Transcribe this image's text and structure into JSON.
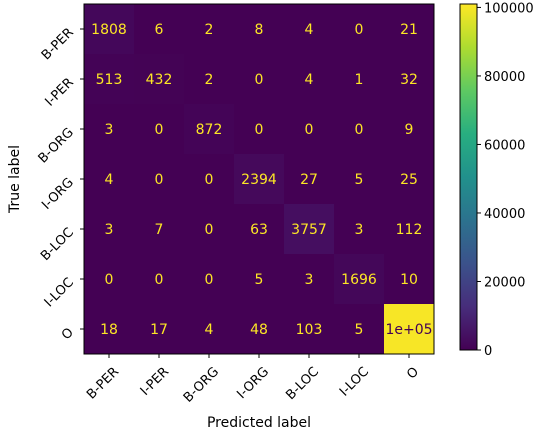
{
  "chart_data": {
    "type": "heatmap",
    "title": "",
    "xlabel": "Predicted label",
    "ylabel": "True label",
    "x_categories": [
      "B-PER",
      "I-PER",
      "B-ORG",
      "I-ORG",
      "B-LOC",
      "I-LOC",
      "O"
    ],
    "y_categories": [
      "B-PER",
      "I-PER",
      "B-ORG",
      "I-ORG",
      "B-LOC",
      "I-LOC",
      "O"
    ],
    "values": [
      [
        1808,
        6,
        2,
        8,
        4,
        0,
        21
      ],
      [
        513,
        432,
        2,
        0,
        4,
        1,
        32
      ],
      [
        3,
        0,
        872,
        0,
        0,
        0,
        9
      ],
      [
        4,
        0,
        0,
        2394,
        27,
        5,
        25
      ],
      [
        3,
        7,
        0,
        63,
        3757,
        3,
        112
      ],
      [
        0,
        0,
        0,
        5,
        3,
        1696,
        10
      ],
      [
        18,
        17,
        4,
        48,
        103,
        5,
        100000
      ]
    ],
    "cell_labels": [
      [
        "1808",
        "6",
        "2",
        "8",
        "4",
        "0",
        "21"
      ],
      [
        "513",
        "432",
        "2",
        "0",
        "4",
        "1",
        "32"
      ],
      [
        "3",
        "0",
        "872",
        "0",
        "0",
        "0",
        "9"
      ],
      [
        "4",
        "0",
        "0",
        "2394",
        "27",
        "5",
        "25"
      ],
      [
        "3",
        "7",
        "0",
        "63",
        "3757",
        "3",
        "112"
      ],
      [
        "0",
        "0",
        "0",
        "5",
        "3",
        "1696",
        "10"
      ],
      [
        "18",
        "17",
        "4",
        "48",
        "103",
        "5",
        "1e+05"
      ]
    ],
    "colormap": "viridis",
    "colorbar": {
      "range": [
        0,
        101000
      ],
      "ticks": [
        0,
        20000,
        40000,
        60000,
        80000,
        100000
      ],
      "tick_labels": [
        "0",
        "20000",
        "40000",
        "60000",
        "80000",
        "100000"
      ]
    },
    "text_colors": {
      "low": "#fde725",
      "high": "#440154"
    }
  }
}
